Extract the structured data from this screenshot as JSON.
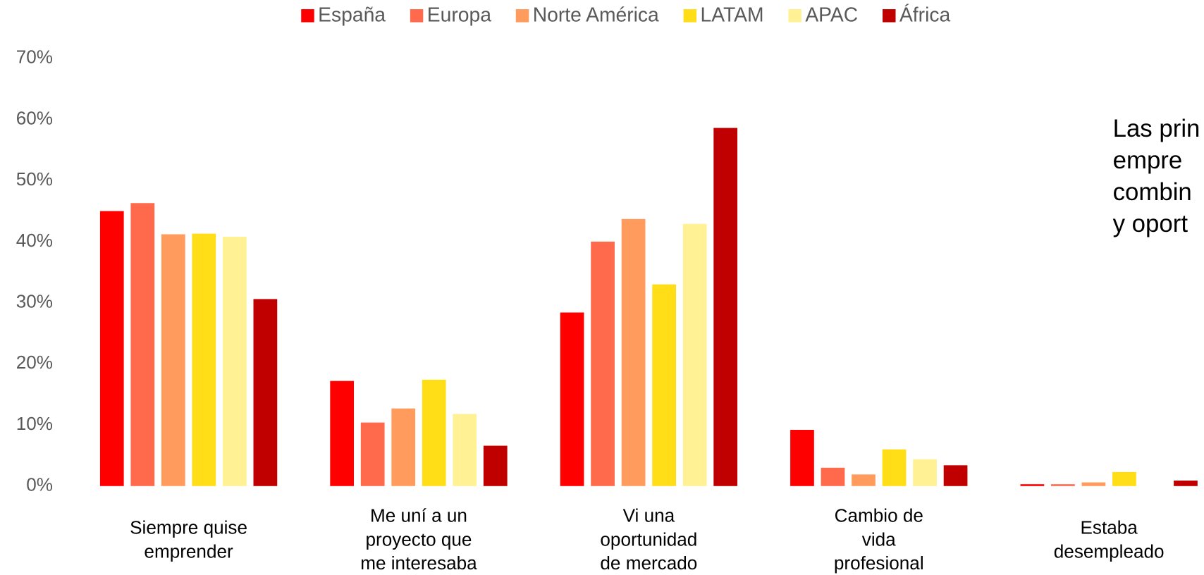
{
  "chart_data": {
    "type": "bar",
    "categories": [
      [
        "Siempre quise",
        "emprender"
      ],
      [
        "Me uní a un",
        "proyecto que",
        "me interesaba"
      ],
      [
        "Vi una",
        "oportunidad",
        "de mercado"
      ],
      [
        "Cambio de",
        "vida",
        "profesional"
      ],
      [
        "Estaba",
        "desempleado"
      ]
    ],
    "series": [
      {
        "name": "España",
        "color": "#ff0000",
        "values": [
          45.0,
          17.2,
          28.4,
          9.2,
          0.3
        ]
      },
      {
        "name": "Europa",
        "color": "#ff6a4d",
        "values": [
          46.3,
          10.4,
          40.0,
          3.0,
          0.3
        ]
      },
      {
        "name": "Norte América",
        "color": "#ff9b5c",
        "values": [
          41.2,
          12.7,
          43.7,
          1.9,
          0.6
        ]
      },
      {
        "name": "LATAM",
        "color": "#ffdd17",
        "values": [
          41.3,
          17.4,
          33.0,
          6.0,
          2.3
        ]
      },
      {
        "name": "APAC",
        "color": "#fff194",
        "values": [
          40.8,
          11.8,
          42.9,
          4.4,
          null
        ]
      },
      {
        "name": "África",
        "color": "#c00000",
        "values": [
          30.6,
          6.6,
          58.6,
          3.4,
          0.9
        ]
      }
    ],
    "ylim": [
      0,
      70
    ],
    "yticks": [
      {
        "value": 0,
        "label": "0%"
      },
      {
        "value": 10,
        "label": "10%"
      },
      {
        "value": 20,
        "label": "20%"
      },
      {
        "value": 30,
        "label": "30%"
      },
      {
        "value": 40,
        "label": "40%"
      },
      {
        "value": 50,
        "label": "50%"
      },
      {
        "value": 60,
        "label": "60%"
      },
      {
        "value": 70,
        "label": "70%"
      }
    ],
    "legend": "top",
    "annotation": [
      "Las prin",
      "empre",
      "combin",
      "y oport"
    ]
  }
}
